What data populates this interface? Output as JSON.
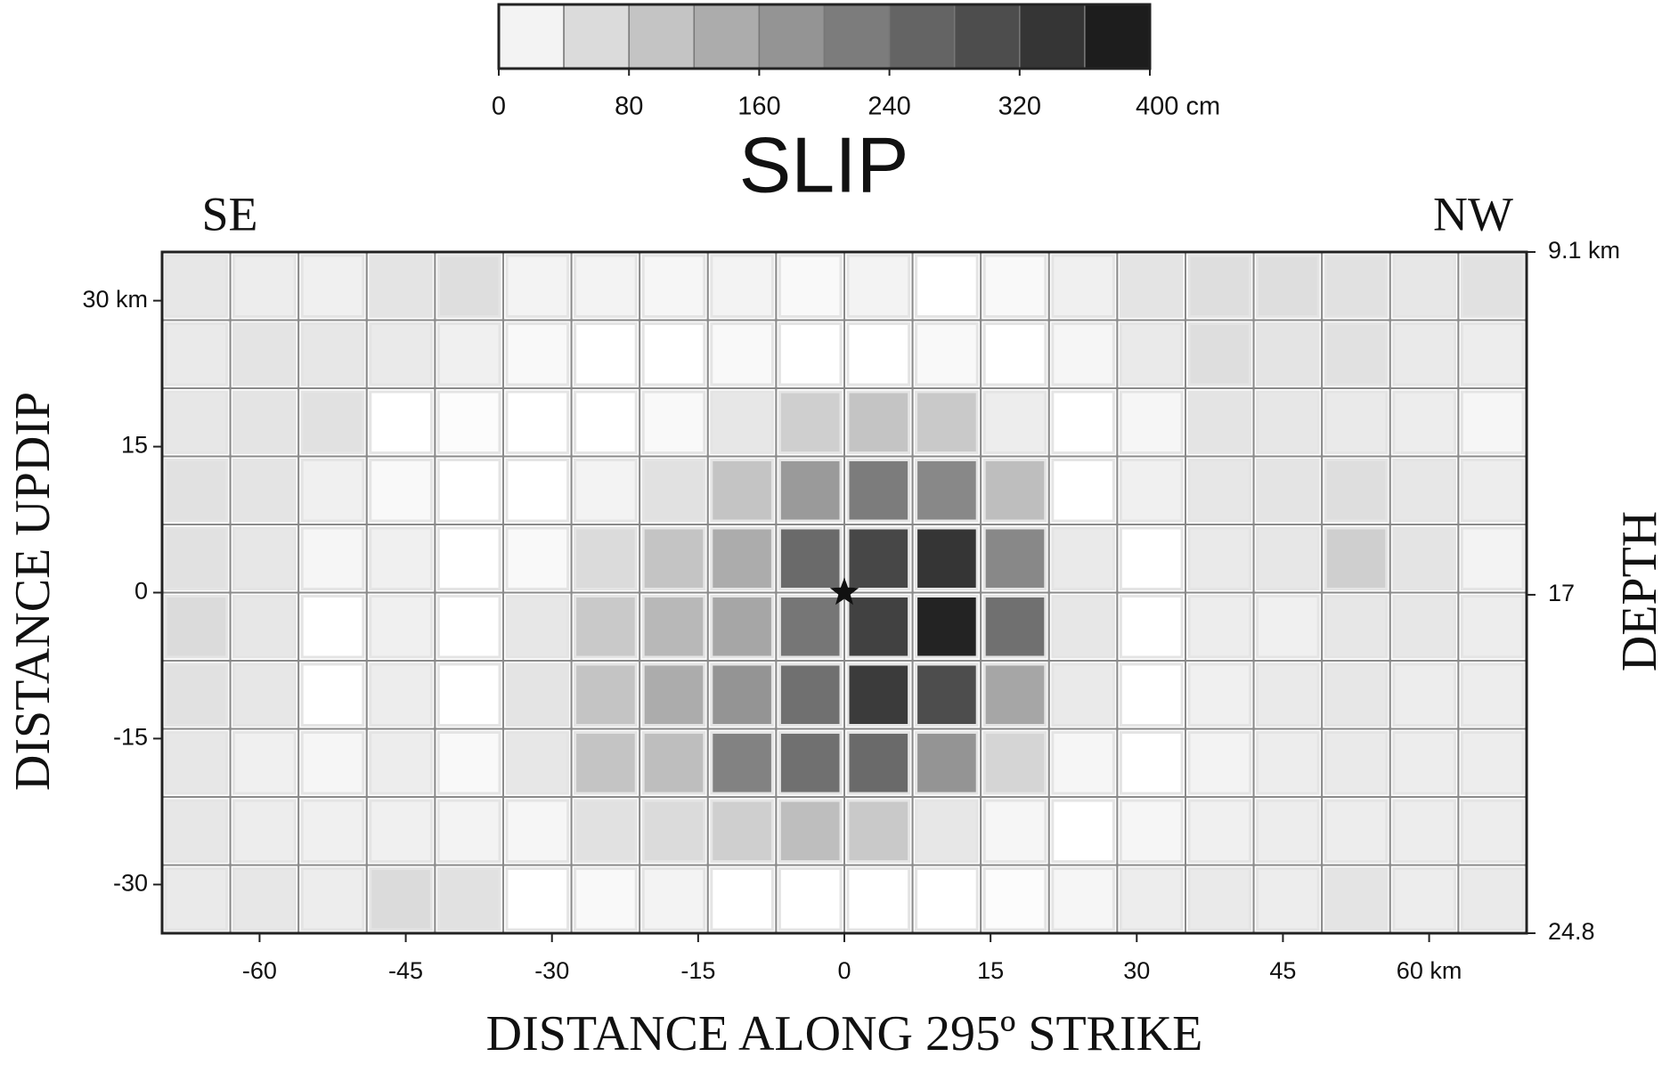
{
  "chart_data": {
    "type": "heatmap",
    "title": "SLIP",
    "colorbar": {
      "lim": [
        0,
        400
      ],
      "ticks": [
        0,
        80,
        160,
        240,
        320,
        {
          "value": 400,
          "label": "400 cm"
        }
      ],
      "levels": 10,
      "color_low": "#ffffff",
      "color_high": "#111111"
    },
    "direction_left": "SE",
    "direction_right": "NW",
    "xlabel": "DISTANCE ALONG 295º STRIKE",
    "ylabel": "DISTANCE UPDIP",
    "y2label": "DEPTH",
    "xlim": [
      -70,
      70
    ],
    "ylim": [
      -35,
      35
    ],
    "xticks": [
      -60,
      -45,
      -30,
      -15,
      0,
      15,
      30,
      45,
      {
        "value": 60,
        "label": "60 km"
      }
    ],
    "yticks": [
      -30,
      -15,
      0,
      15,
      {
        "value": 30,
        "label": "30 km"
      }
    ],
    "y2lim": [
      24.8,
      9.1
    ],
    "y2ticks": [
      {
        "value": 9.1,
        "label": "9.1 km"
      },
      17,
      24.8
    ],
    "hypocenter": {
      "x": 0,
      "y": 0
    },
    "values": [
      [
        40,
        30,
        25,
        45,
        55,
        20,
        20,
        15,
        20,
        10,
        20,
        0,
        10,
        25,
        45,
        55,
        55,
        50,
        40,
        50
      ],
      [
        35,
        45,
        40,
        35,
        25,
        10,
        0,
        0,
        10,
        0,
        0,
        10,
        0,
        15,
        35,
        55,
        45,
        50,
        35,
        30
      ],
      [
        40,
        45,
        50,
        0,
        5,
        0,
        0,
        10,
        40,
        80,
        100,
        90,
        30,
        0,
        15,
        45,
        40,
        35,
        30,
        15
      ],
      [
        50,
        45,
        25,
        10,
        0,
        0,
        20,
        50,
        100,
        170,
        220,
        200,
        110,
        0,
        25,
        40,
        45,
        55,
        40,
        30
      ],
      [
        50,
        40,
        15,
        25,
        0,
        10,
        60,
        100,
        140,
        250,
        310,
        340,
        200,
        35,
        0,
        35,
        40,
        80,
        45,
        20
      ],
      [
        60,
        40,
        0,
        25,
        0,
        40,
        90,
        120,
        150,
        230,
        320,
        370,
        240,
        40,
        0,
        30,
        25,
        40,
        40,
        30
      ],
      [
        50,
        40,
        0,
        30,
        0,
        45,
        100,
        140,
        180,
        240,
        330,
        300,
        150,
        35,
        0,
        25,
        35,
        40,
        30,
        30
      ],
      [
        40,
        25,
        15,
        30,
        10,
        40,
        100,
        110,
        210,
        240,
        250,
        180,
        70,
        15,
        0,
        20,
        30,
        35,
        30,
        30
      ],
      [
        40,
        30,
        25,
        25,
        20,
        15,
        50,
        60,
        80,
        110,
        90,
        40,
        15,
        0,
        15,
        25,
        30,
        30,
        30,
        30
      ],
      [
        35,
        40,
        30,
        60,
        50,
        0,
        10,
        20,
        0,
        0,
        0,
        0,
        5,
        15,
        30,
        35,
        30,
        45,
        30,
        35
      ]
    ]
  }
}
